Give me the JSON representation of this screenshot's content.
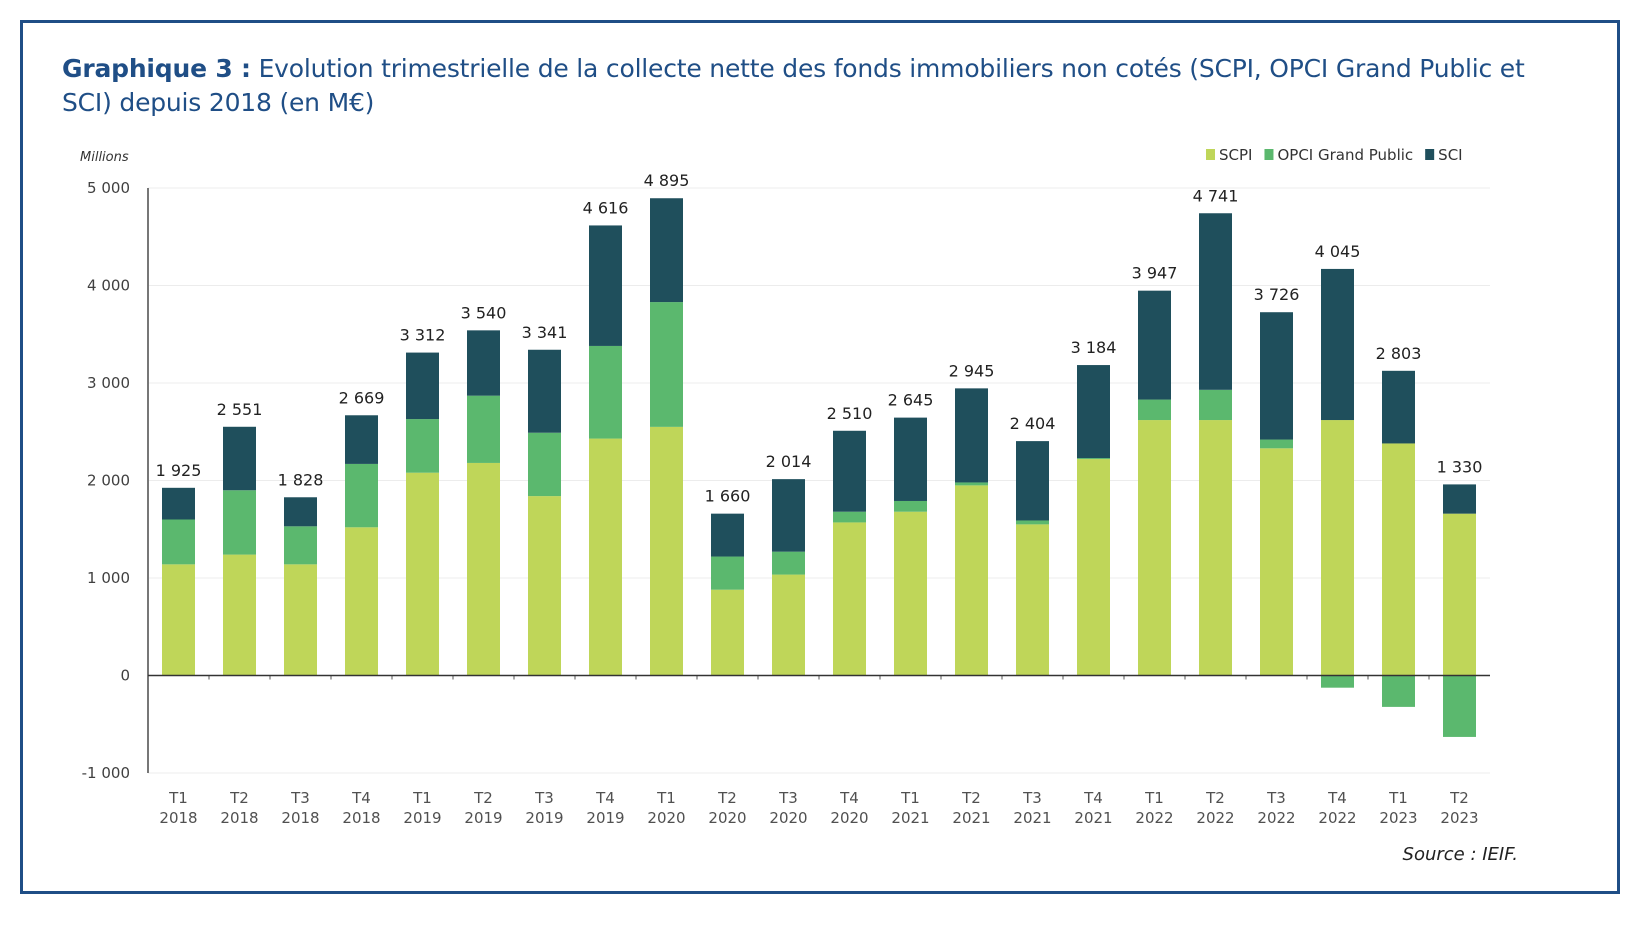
{
  "title": {
    "prefix": "Graphique 3 :",
    "text": " Evolution trimestrielle de la collecte nette des fonds immobiliers non cotés (SCPI, OPCI Grand Public et SCI) depuis 2018 (en M€)"
  },
  "source": "Source : IEIF.",
  "colors": {
    "frame": "#1f4e86",
    "title": "#1f4e86",
    "SCPI": "#bfd659",
    "OPCI Grand Public": "#5bb86e",
    "SCI": "#1f4f5c"
  },
  "chart_data": {
    "type": "bar",
    "stacked": true,
    "title": "Evolution trimestrielle de la collecte nette des fonds immobiliers non cotés (SCPI, OPCI Grand Public et SCI) depuis 2018 (en M€)",
    "units_label": "Millions",
    "xlabel": "",
    "ylabel": "Millions",
    "ylim": [
      -1000,
      5000
    ],
    "yticks": [
      -1000,
      0,
      1000,
      2000,
      3000,
      4000,
      5000
    ],
    "ytick_labels": [
      "-1 000",
      "0",
      "1 000",
      "2 000",
      "3 000",
      "4 000",
      "5 000"
    ],
    "grid": true,
    "legend_position": "top-right",
    "categories": [
      [
        "T1",
        "2018"
      ],
      [
        "T2",
        "2018"
      ],
      [
        "T3",
        "2018"
      ],
      [
        "T4",
        "2018"
      ],
      [
        "T1",
        "2019"
      ],
      [
        "T2",
        "2019"
      ],
      [
        "T3",
        "2019"
      ],
      [
        "T4",
        "2019"
      ],
      [
        "T1",
        "2020"
      ],
      [
        "T2",
        "2020"
      ],
      [
        "T3",
        "2020"
      ],
      [
        "T4",
        "2020"
      ],
      [
        "T1",
        "2021"
      ],
      [
        "T2",
        "2021"
      ],
      [
        "T3",
        "2021"
      ],
      [
        "T4",
        "2021"
      ],
      [
        "T1",
        "2022"
      ],
      [
        "T2",
        "2022"
      ],
      [
        "T3",
        "2022"
      ],
      [
        "T4",
        "2022"
      ],
      [
        "T1",
        "2023"
      ],
      [
        "T2",
        "2023"
      ]
    ],
    "series": [
      {
        "name": "SCPI",
        "values": [
          1140,
          1240,
          1140,
          1520,
          2080,
          2180,
          1840,
          2430,
          2550,
          880,
          1035,
          1570,
          1680,
          1950,
          1550,
          2220,
          2620,
          2620,
          2330,
          2620,
          2380,
          1660
        ]
      },
      {
        "name": "OPCI Grand Public",
        "values": [
          460,
          660,
          390,
          650,
          550,
          690,
          650,
          950,
          1280,
          340,
          235,
          110,
          110,
          30,
          40,
          10,
          210,
          310,
          90,
          -125,
          -322,
          -630
        ]
      },
      {
        "name": "SCI",
        "values": [
          325,
          651,
          298,
          499,
          682,
          670,
          851,
          1236,
          1065,
          440,
          744,
          830,
          855,
          965,
          814,
          954,
          1117,
          1811,
          1306,
          1550,
          745,
          300
        ]
      }
    ],
    "totals": [
      1925,
      2551,
      1828,
      2669,
      3312,
      3540,
      3341,
      4616,
      4895,
      1660,
      2014,
      2510,
      2645,
      2945,
      2404,
      3184,
      3947,
      4741,
      3726,
      4045,
      2803,
      1330
    ],
    "total_labels": [
      "1 925",
      "2 551",
      "1 828",
      "2 669",
      "3 312",
      "3 540",
      "3 341",
      "4 616",
      "4 895",
      "1 660",
      "2 014",
      "2 510",
      "2 645",
      "2 945",
      "2 404",
      "3 184",
      "3 947",
      "4 741",
      "3 726",
      "4 045",
      "2 803",
      "1 330"
    ]
  }
}
